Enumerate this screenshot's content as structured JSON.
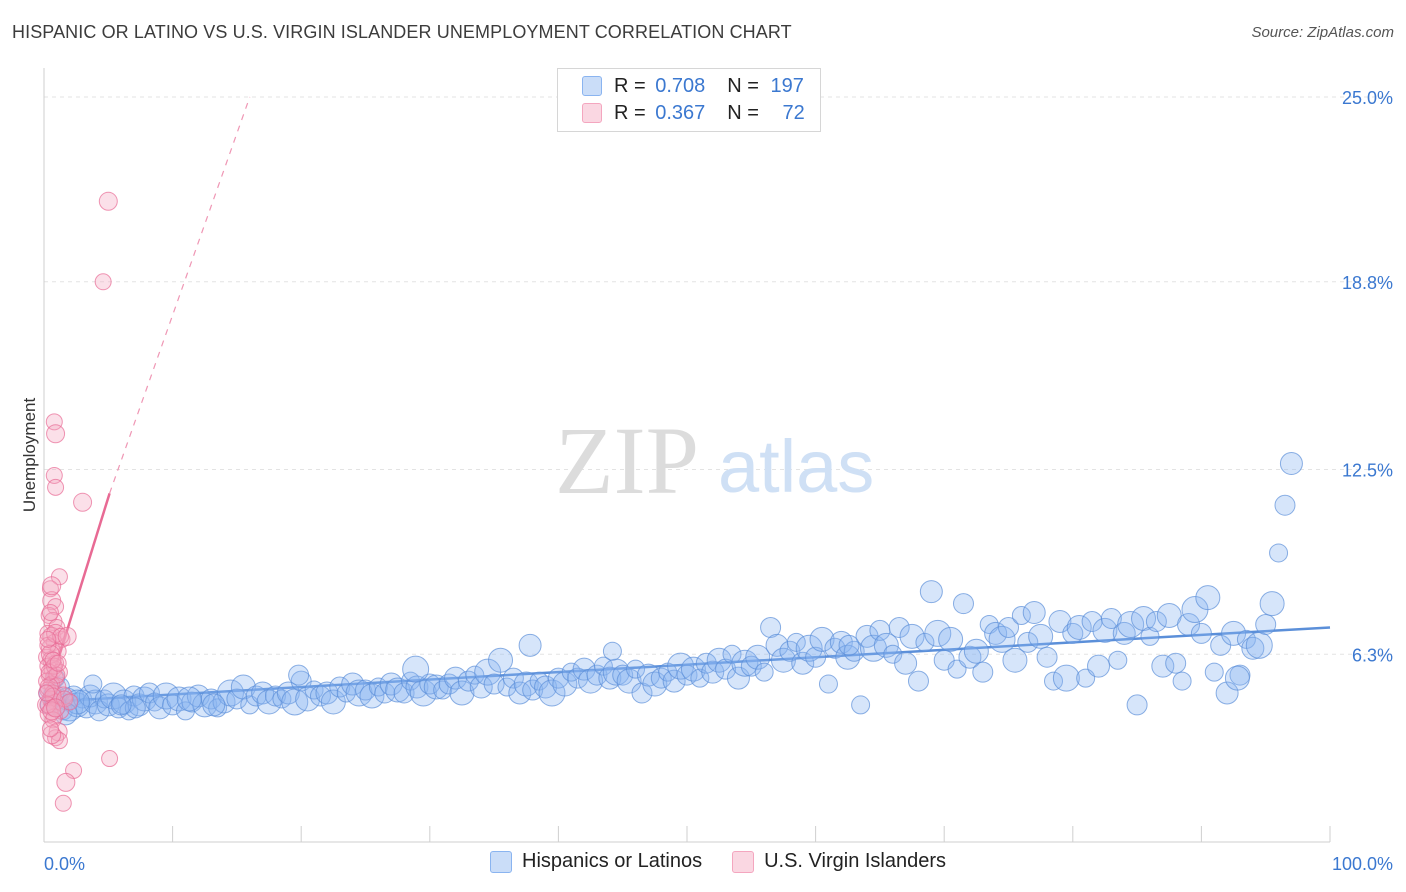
{
  "title": "HISPANIC OR LATINO VS U.S. VIRGIN ISLANDER UNEMPLOYMENT CORRELATION CHART",
  "source": "Source: ZipAtlas.com",
  "watermark": {
    "zip": "ZIP",
    "atlas": "atlas"
  },
  "legend": {
    "r_label": "R =",
    "n_label": "N =",
    "rows": [
      {
        "r": "0.708",
        "n": "197",
        "color": "#8ab4f0"
      },
      {
        "r": "0.367",
        "n": "72",
        "color": "#f4a6bf"
      }
    ]
  },
  "bottom_legend": [
    "Hispanics or Latinos",
    "U.S. Virgin Islanders"
  ],
  "chart_data": {
    "type": "scatter",
    "ylabel": "Unemployment",
    "xlim": [
      0,
      100
    ],
    "ylim": [
      0,
      25
    ],
    "y_ticks": [
      {
        "value": 6.3,
        "label": "6.3%"
      },
      {
        "value": 12.5,
        "label": "12.5%"
      },
      {
        "value": 18.8,
        "label": "18.8%"
      },
      {
        "value": 25.0,
        "label": "25.0%"
      }
    ],
    "x_tick_labels": [
      {
        "value": 0,
        "label": "0.0%"
      },
      {
        "value": 100,
        "label": "100.0%"
      }
    ],
    "grid": true,
    "series": [
      {
        "name": "Hispanics or Latinos",
        "color": "#5b8fd9",
        "fill": "rgba(138,180,240,0.35)",
        "trend": {
          "x0": 0,
          "y0": 4.7,
          "x1": 100,
          "y1": 7.2
        },
        "points": [
          [
            0.3,
            5.0
          ],
          [
            0.5,
            4.6
          ],
          [
            0.8,
            4.9
          ],
          [
            1.0,
            4.7
          ],
          [
            1.2,
            5.2
          ],
          [
            1.5,
            4.4
          ],
          [
            1.8,
            4.8
          ],
          [
            2.0,
            4.5
          ],
          [
            2.3,
            4.9
          ],
          [
            2.6,
            4.6
          ],
          [
            3.0,
            4.8
          ],
          [
            3.3,
            4.5
          ],
          [
            3.6,
            4.9
          ],
          [
            4.0,
            4.7
          ],
          [
            4.3,
            4.4
          ],
          [
            4.7,
            4.8
          ],
          [
            5.0,
            4.6
          ],
          [
            5.4,
            4.9
          ],
          [
            5.8,
            4.5
          ],
          [
            6.2,
            4.7
          ],
          [
            6.6,
            4.4
          ],
          [
            7.0,
            4.9
          ],
          [
            7.4,
            4.6
          ],
          [
            7.8,
            4.8
          ],
          [
            8.2,
            5.0
          ],
          [
            8.6,
            4.7
          ],
          [
            9.0,
            4.5
          ],
          [
            9.5,
            4.9
          ],
          [
            10.0,
            4.6
          ],
          [
            10.5,
            4.8
          ],
          [
            11.0,
            4.4
          ],
          [
            11.5,
            4.7
          ],
          [
            12.0,
            4.9
          ],
          [
            12.5,
            4.6
          ],
          [
            13.0,
            4.8
          ],
          [
            13.5,
            4.5
          ],
          [
            14.0,
            4.7
          ],
          [
            14.5,
            5.0
          ],
          [
            15.0,
            4.8
          ],
          [
            15.5,
            5.2
          ],
          [
            16.0,
            4.6
          ],
          [
            16.5,
            4.9
          ],
          [
            17.0,
            5.0
          ],
          [
            17.5,
            4.7
          ],
          [
            18.0,
            4.9
          ],
          [
            18.5,
            4.8
          ],
          [
            19.0,
            5.0
          ],
          [
            19.5,
            4.7
          ],
          [
            20.0,
            5.4
          ],
          [
            20.5,
            4.8
          ],
          [
            21.0,
            5.1
          ],
          [
            21.5,
            4.9
          ],
          [
            22.0,
            5.0
          ],
          [
            22.5,
            4.7
          ],
          [
            23.0,
            5.2
          ],
          [
            23.5,
            5.0
          ],
          [
            24.0,
            5.3
          ],
          [
            24.5,
            5.0
          ],
          [
            25.0,
            5.1
          ],
          [
            25.5,
            4.9
          ],
          [
            26.0,
            5.2
          ],
          [
            26.5,
            5.0
          ],
          [
            27.0,
            5.3
          ],
          [
            27.5,
            5.1
          ],
          [
            28.0,
            5.0
          ],
          [
            28.5,
            5.4
          ],
          [
            29.0,
            5.2
          ],
          [
            29.5,
            5.0
          ],
          [
            30.0,
            5.3
          ],
          [
            30.5,
            5.2
          ],
          [
            31.0,
            5.1
          ],
          [
            31.5,
            5.3
          ],
          [
            32.0,
            5.5
          ],
          [
            32.5,
            5.0
          ],
          [
            33.0,
            5.4
          ],
          [
            33.5,
            5.6
          ],
          [
            34.0,
            5.2
          ],
          [
            34.5,
            5.7
          ],
          [
            35.0,
            5.3
          ],
          [
            35.5,
            6.1
          ],
          [
            36.0,
            5.2
          ],
          [
            36.5,
            5.5
          ],
          [
            37.0,
            5.0
          ],
          [
            37.5,
            5.3
          ],
          [
            38.0,
            5.1
          ],
          [
            38.5,
            5.4
          ],
          [
            39.0,
            5.2
          ],
          [
            39.5,
            5.0
          ],
          [
            40.0,
            5.5
          ],
          [
            40.5,
            5.3
          ],
          [
            41.0,
            5.7
          ],
          [
            41.5,
            5.5
          ],
          [
            42.0,
            5.8
          ],
          [
            42.5,
            5.4
          ],
          [
            43.0,
            5.6
          ],
          [
            43.5,
            5.9
          ],
          [
            44.0,
            5.5
          ],
          [
            44.5,
            5.7
          ],
          [
            45.0,
            5.6
          ],
          [
            45.5,
            5.4
          ],
          [
            46.0,
            5.8
          ],
          [
            46.5,
            5.0
          ],
          [
            47.0,
            5.6
          ],
          [
            47.5,
            5.3
          ],
          [
            48.0,
            5.5
          ],
          [
            48.5,
            5.7
          ],
          [
            49.0,
            5.4
          ],
          [
            49.5,
            5.9
          ],
          [
            50.0,
            5.6
          ],
          [
            50.5,
            5.8
          ],
          [
            51.0,
            5.5
          ],
          [
            51.5,
            6.0
          ],
          [
            52.0,
            5.7
          ],
          [
            52.5,
            6.1
          ],
          [
            53.0,
            5.8
          ],
          [
            53.5,
            6.3
          ],
          [
            54.0,
            5.5
          ],
          [
            54.5,
            6.0
          ],
          [
            55.0,
            5.9
          ],
          [
            55.5,
            6.2
          ],
          [
            56.0,
            5.7
          ],
          [
            56.5,
            7.2
          ],
          [
            57.0,
            6.6
          ],
          [
            57.5,
            6.1
          ],
          [
            58.0,
            6.4
          ],
          [
            58.5,
            6.7
          ],
          [
            59.0,
            6.0
          ],
          [
            59.5,
            6.5
          ],
          [
            60.0,
            6.2
          ],
          [
            60.5,
            6.8
          ],
          [
            61.0,
            5.3
          ],
          [
            61.5,
            6.5
          ],
          [
            62.0,
            6.7
          ],
          [
            62.5,
            6.2
          ],
          [
            63.0,
            6.4
          ],
          [
            63.5,
            4.6
          ],
          [
            64.0,
            6.9
          ],
          [
            64.5,
            6.5
          ],
          [
            65.0,
            7.1
          ],
          [
            65.5,
            6.6
          ],
          [
            66.0,
            6.3
          ],
          [
            66.5,
            7.2
          ],
          [
            67.0,
            6.0
          ],
          [
            67.5,
            6.9
          ],
          [
            68.0,
            5.4
          ],
          [
            68.5,
            6.7
          ],
          [
            69.0,
            8.4
          ],
          [
            69.5,
            7.0
          ],
          [
            70.0,
            6.1
          ],
          [
            70.5,
            6.8
          ],
          [
            71.0,
            5.8
          ],
          [
            71.5,
            8.0
          ],
          [
            72.0,
            6.2
          ],
          [
            72.5,
            6.4
          ],
          [
            73.0,
            5.7
          ],
          [
            73.5,
            7.3
          ],
          [
            74.0,
            7.0
          ],
          [
            74.5,
            6.8
          ],
          [
            75.0,
            7.2
          ],
          [
            75.5,
            6.1
          ],
          [
            76.0,
            7.6
          ],
          [
            76.5,
            6.7
          ],
          [
            77.0,
            7.7
          ],
          [
            77.5,
            6.9
          ],
          [
            78.0,
            6.2
          ],
          [
            78.5,
            5.4
          ],
          [
            79.0,
            7.4
          ],
          [
            79.5,
            5.5
          ],
          [
            80.0,
            7.0
          ],
          [
            80.5,
            7.2
          ],
          [
            81.0,
            5.5
          ],
          [
            81.5,
            7.4
          ],
          [
            82.0,
            5.9
          ],
          [
            82.5,
            7.1
          ],
          [
            83.0,
            7.5
          ],
          [
            83.5,
            6.1
          ],
          [
            84.0,
            7.0
          ],
          [
            84.5,
            7.3
          ],
          [
            85.0,
            4.6
          ],
          [
            85.5,
            7.5
          ],
          [
            86.0,
            6.9
          ],
          [
            86.5,
            7.4
          ],
          [
            87.0,
            5.9
          ],
          [
            87.5,
            7.6
          ],
          [
            88.0,
            6.0
          ],
          [
            88.5,
            5.4
          ],
          [
            89.0,
            7.3
          ],
          [
            89.5,
            7.8
          ],
          [
            90.0,
            7.0
          ],
          [
            90.5,
            8.2
          ],
          [
            91.0,
            5.7
          ],
          [
            91.5,
            6.6
          ],
          [
            92.0,
            5.0
          ],
          [
            92.5,
            7.0
          ],
          [
            93.0,
            5.6
          ],
          [
            93.5,
            6.8
          ],
          [
            94.0,
            6.5
          ],
          [
            94.5,
            6.6
          ],
          [
            95.0,
            7.3
          ],
          [
            95.5,
            8.0
          ],
          [
            96.0,
            9.7
          ],
          [
            96.5,
            11.3
          ],
          [
            97.0,
            12.7
          ],
          [
            92.8,
            5.5
          ],
          [
            62.6,
            6.6
          ],
          [
            44.2,
            6.4
          ],
          [
            37.8,
            6.6
          ],
          [
            28.9,
            5.8
          ],
          [
            19.8,
            5.6
          ],
          [
            11.3,
            4.8
          ],
          [
            3.8,
            5.3
          ],
          [
            7.1,
            4.5
          ],
          [
            13.2,
            4.6
          ],
          [
            2.6,
            4.7
          ],
          [
            6.0,
            4.6
          ],
          [
            0.9,
            5.5
          ],
          [
            1.7,
            4.3
          ]
        ]
      },
      {
        "name": "U.S. Virgin Islanders",
        "color": "#e86a94",
        "fill": "rgba(244,166,191,0.35)",
        "trend": {
          "x0": 0,
          "y0": 4.6,
          "x1": 5.1,
          "y1": 11.7
        },
        "trend_ext": {
          "x0": 5.1,
          "y0": 11.7,
          "x1": 16.0,
          "y1": 25.0
        },
        "points": [
          [
            5.0,
            21.5
          ],
          [
            4.6,
            18.8
          ],
          [
            0.8,
            14.1
          ],
          [
            0.9,
            13.7
          ],
          [
            0.8,
            12.3
          ],
          [
            0.9,
            11.9
          ],
          [
            3.0,
            11.4
          ],
          [
            1.2,
            8.9
          ],
          [
            0.5,
            8.5
          ],
          [
            0.6,
            8.1
          ],
          [
            0.9,
            7.9
          ],
          [
            0.4,
            7.6
          ],
          [
            0.7,
            7.4
          ],
          [
            1.0,
            7.2
          ],
          [
            0.3,
            7.0
          ],
          [
            0.6,
            6.9
          ],
          [
            1.4,
            6.8
          ],
          [
            0.8,
            6.7
          ],
          [
            0.5,
            6.5
          ],
          [
            1.1,
            6.4
          ],
          [
            0.2,
            6.2
          ],
          [
            0.6,
            6.1
          ],
          [
            0.9,
            6.0
          ],
          [
            0.3,
            5.9
          ],
          [
            0.7,
            5.8
          ],
          [
            1.2,
            5.7
          ],
          [
            0.4,
            5.6
          ],
          [
            0.8,
            5.5
          ],
          [
            0.2,
            5.4
          ],
          [
            0.6,
            5.3
          ],
          [
            1.0,
            5.2
          ],
          [
            0.3,
            5.1
          ],
          [
            0.7,
            5.0
          ],
          [
            1.5,
            4.9
          ],
          [
            0.5,
            4.8
          ],
          [
            0.9,
            4.7
          ],
          [
            0.2,
            4.6
          ],
          [
            0.6,
            4.5
          ],
          [
            1.3,
            4.4
          ],
          [
            0.4,
            4.3
          ],
          [
            0.8,
            4.2
          ],
          [
            0.7,
            4.1
          ],
          [
            1.1,
            3.7
          ],
          [
            0.9,
            3.5
          ],
          [
            1.2,
            3.4
          ],
          [
            0.6,
            3.6
          ],
          [
            5.1,
            2.8
          ],
          [
            2.3,
            2.4
          ],
          [
            1.7,
            2.0
          ],
          [
            1.5,
            1.3
          ],
          [
            0.3,
            6.6
          ],
          [
            0.5,
            6.3
          ],
          [
            0.8,
            5.9
          ],
          [
            1.0,
            5.6
          ],
          [
            0.4,
            5.2
          ],
          [
            0.7,
            4.9
          ],
          [
            0.3,
            4.6
          ],
          [
            0.6,
            4.4
          ],
          [
            1.6,
            4.8
          ],
          [
            2.0,
            4.7
          ],
          [
            0.9,
            7.0
          ],
          [
            0.5,
            7.7
          ],
          [
            1.3,
            6.9
          ],
          [
            0.6,
            8.6
          ],
          [
            0.4,
            5.7
          ],
          [
            0.2,
            5.0
          ],
          [
            1.8,
            6.9
          ],
          [
            0.7,
            6.1
          ],
          [
            0.3,
            6.8
          ],
          [
            0.9,
            4.5
          ],
          [
            0.5,
            3.8
          ],
          [
            1.1,
            6.0
          ]
        ]
      }
    ]
  }
}
